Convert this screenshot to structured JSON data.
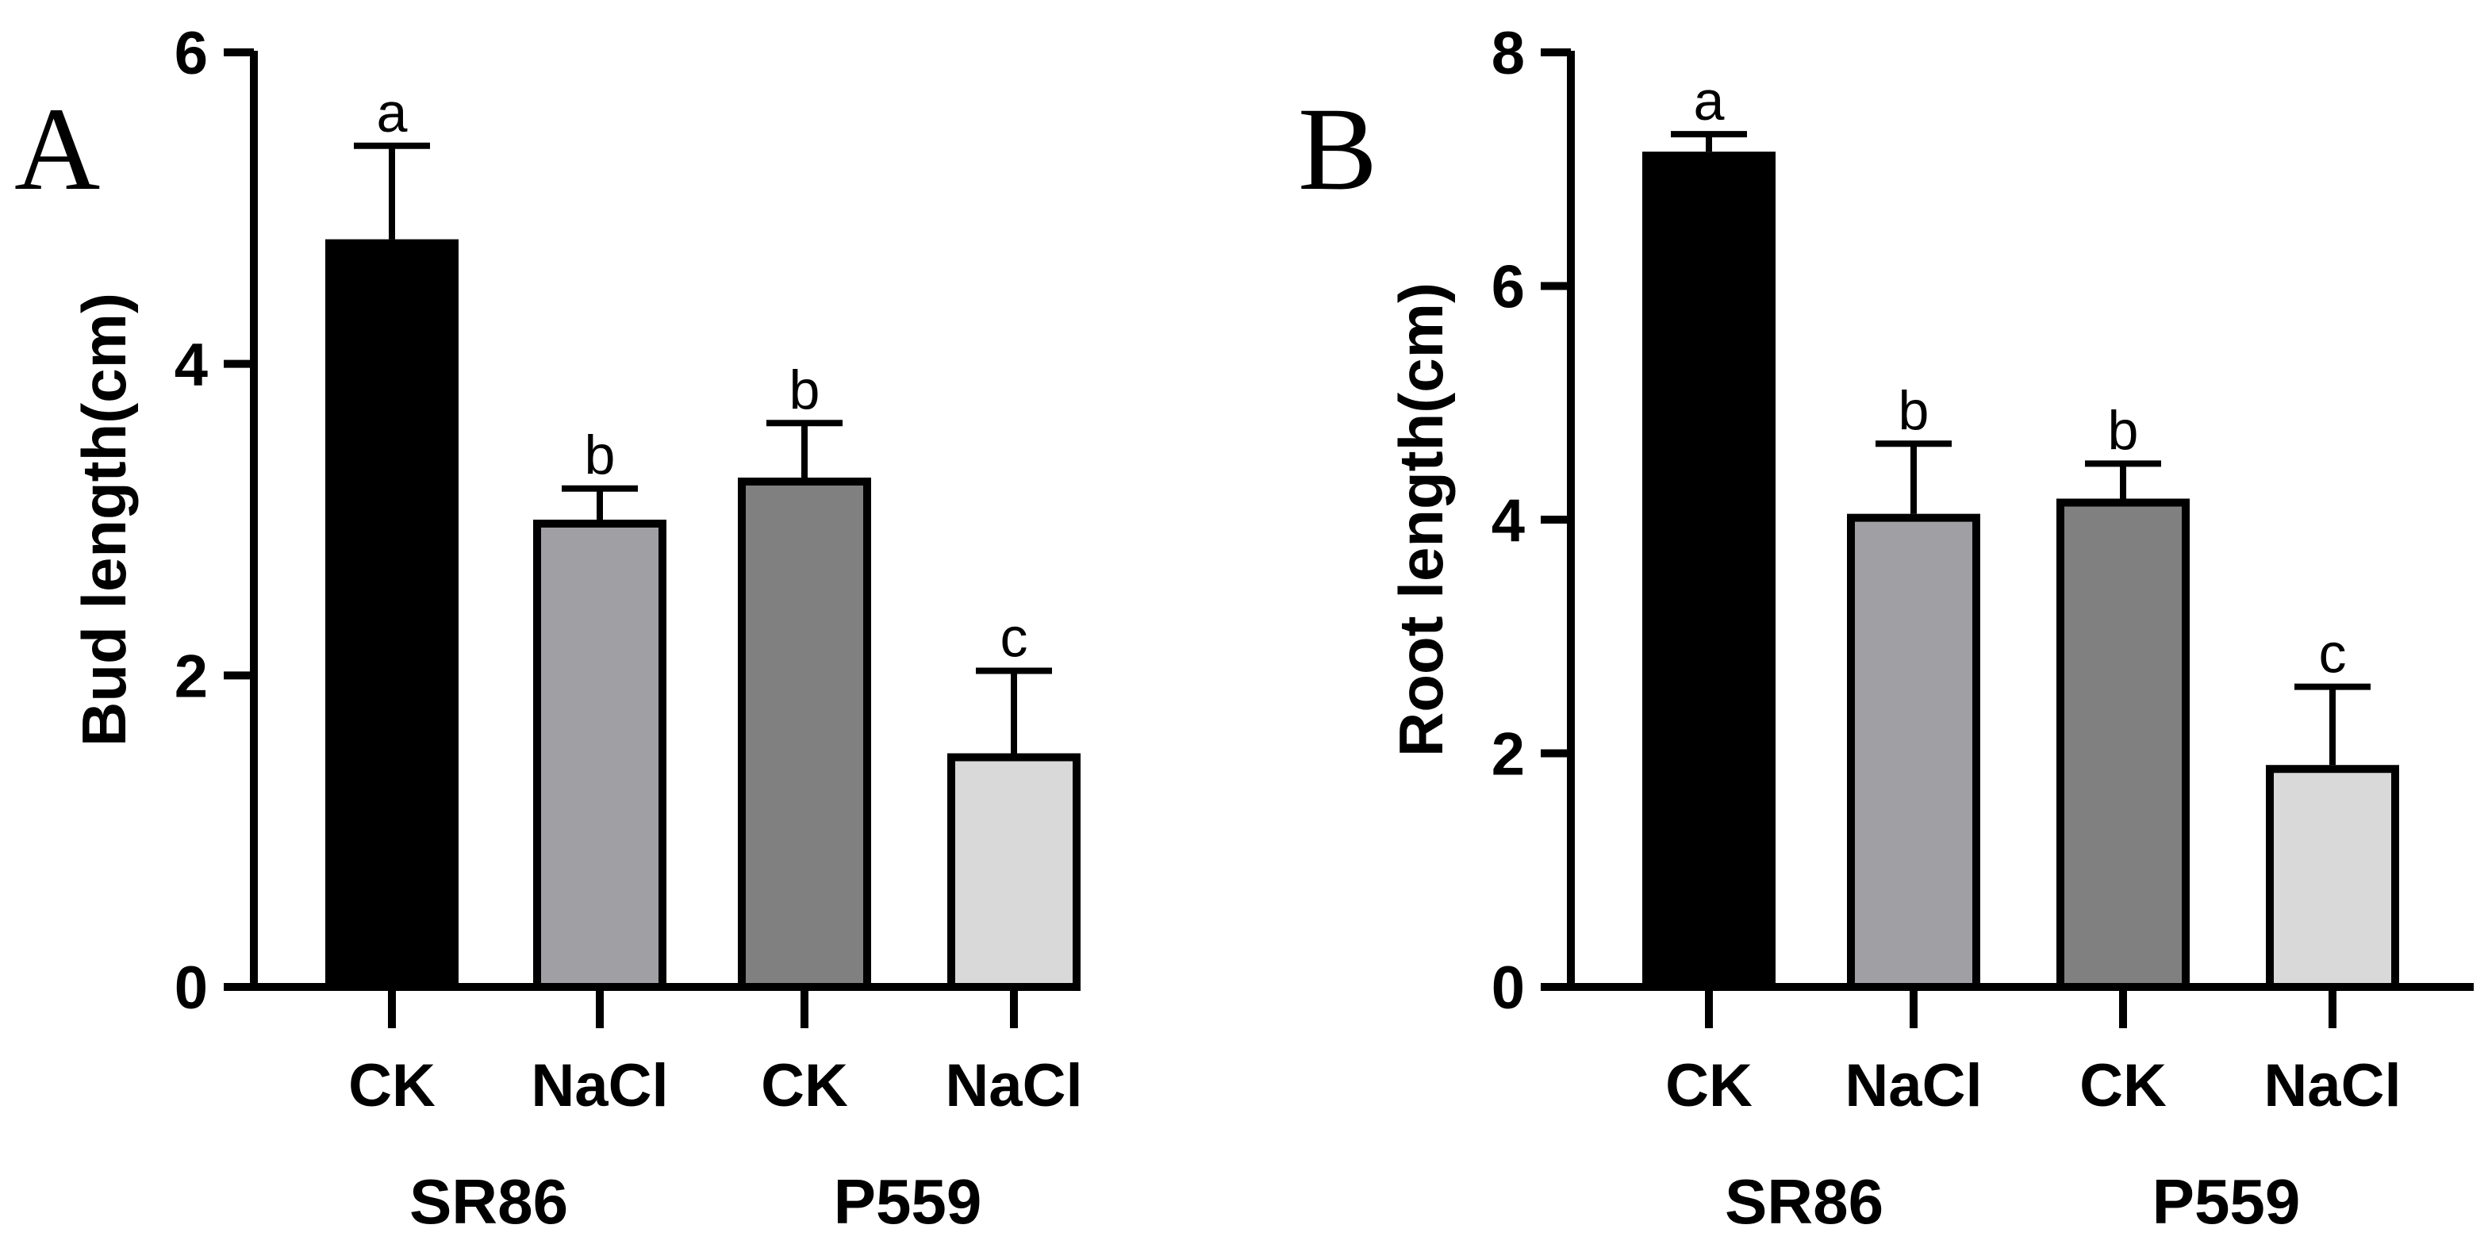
{
  "colors": {
    "axis": "#000000",
    "bar_ck_sr86": "#000000",
    "bar_nacl_sr86": "#a0a0a4",
    "bar_ck_p559": "#808080",
    "bar_nacl_p559": "#d9d9d9",
    "bar_outline": "#000000",
    "error_bar": "#000000"
  },
  "chart_data": [
    {
      "type": "bar",
      "panel_label": "A",
      "ylabel": "Bud length(cm)",
      "xlabel": "",
      "ylim": [
        0,
        6
      ],
      "yticks": [
        0,
        2,
        4,
        6
      ],
      "categories": [
        "CK",
        "NaCl",
        "CK",
        "NaCl"
      ],
      "groups": [
        {
          "label": "SR86",
          "categories": [
            0,
            1
          ]
        },
        {
          "label": "P559",
          "categories": [
            2,
            3
          ]
        }
      ],
      "values": [
        4.8,
        3.0,
        3.27,
        1.5
      ],
      "errors": [
        0.6,
        0.2,
        0.35,
        0.53
      ],
      "significance": [
        "a",
        "b",
        "b",
        "c"
      ],
      "bar_colors": [
        "#000000",
        "#a0a0a4",
        "#808080",
        "#d9d9d9"
      ],
      "grid": false,
      "legend": "none"
    },
    {
      "type": "bar",
      "panel_label": "B",
      "ylabel": "Root length(cm)",
      "xlabel": "",
      "ylim": [
        0,
        8
      ],
      "yticks": [
        0,
        2,
        4,
        6,
        8
      ],
      "categories": [
        "CK",
        "NaCl",
        "CK",
        "NaCl"
      ],
      "groups": [
        {
          "label": "SR86",
          "categories": [
            0,
            1
          ]
        },
        {
          "label": "P559",
          "categories": [
            2,
            3
          ]
        }
      ],
      "values": [
        7.15,
        4.05,
        4.18,
        1.9
      ],
      "errors": [
        0.15,
        0.6,
        0.3,
        0.67
      ],
      "significance": [
        "a",
        "b",
        "b",
        "c"
      ],
      "bar_colors": [
        "#000000",
        "#a0a0a4",
        "#808080",
        "#d9d9d9"
      ],
      "grid": false,
      "legend": "none"
    }
  ]
}
